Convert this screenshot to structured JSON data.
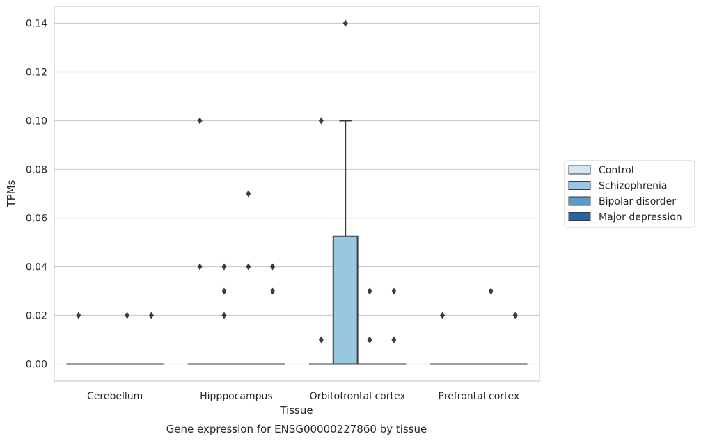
{
  "chart_data": {
    "type": "box",
    "title": "Gene expression for ENSG00000227860 by tissue",
    "xlabel": "Tissue",
    "ylabel": "TPMs",
    "ylim": [
      -0.007,
      0.147
    ],
    "yticks": [
      0.0,
      0.02,
      0.04,
      0.06,
      0.08,
      0.1,
      0.12,
      0.14
    ],
    "ytick_labels": [
      "0.00",
      "0.02",
      "0.04",
      "0.06",
      "0.08",
      "0.10",
      "0.12",
      "0.14"
    ],
    "categories": [
      "Cerebellum",
      "Hipppocampus",
      "Orbitofrontal cortex",
      "Prefrontal cortex"
    ],
    "grid": true,
    "legend_position": "right",
    "series": [
      {
        "name": "Control",
        "color": "#d6e5f4",
        "boxes": [
          {
            "q1": 0,
            "median": 0,
            "q3": 0,
            "whisker_low": 0,
            "whisker_high": 0,
            "outliers": [
              0.02
            ]
          },
          {
            "q1": 0,
            "median": 0,
            "q3": 0,
            "whisker_low": 0,
            "whisker_high": 0,
            "outliers": [
              0.1,
              0.04
            ]
          },
          {
            "q1": 0,
            "median": 0,
            "q3": 0,
            "whisker_low": 0,
            "whisker_high": 0,
            "outliers": [
              0.1,
              0.01
            ]
          },
          {
            "q1": 0,
            "median": 0,
            "q3": 0,
            "whisker_low": 0,
            "whisker_high": 0,
            "outliers": [
              0.02
            ]
          }
        ]
      },
      {
        "name": "Schizophrenia",
        "color": "#9ac7e0",
        "boxes": [
          {
            "q1": 0,
            "median": 0,
            "q3": 0,
            "whisker_low": 0,
            "whisker_high": 0,
            "outliers": []
          },
          {
            "q1": 0,
            "median": 0,
            "q3": 0,
            "whisker_low": 0,
            "whisker_high": 0,
            "outliers": [
              0.04,
              0.03,
              0.02
            ]
          },
          {
            "q1": 0,
            "median": 0,
            "q3": 0.0525,
            "whisker_low": 0,
            "whisker_high": 0.1,
            "outliers": [
              0.14
            ]
          },
          {
            "q1": 0,
            "median": 0,
            "q3": 0,
            "whisker_low": 0,
            "whisker_high": 0,
            "outliers": []
          }
        ]
      },
      {
        "name": "Bipolar disorder",
        "color": "#5a9bc8",
        "boxes": [
          {
            "q1": 0,
            "median": 0,
            "q3": 0,
            "whisker_low": 0,
            "whisker_high": 0,
            "outliers": [
              0.02
            ]
          },
          {
            "q1": 0,
            "median": 0,
            "q3": 0,
            "whisker_low": 0,
            "whisker_high": 0,
            "outliers": [
              0.07,
              0.04
            ]
          },
          {
            "q1": 0,
            "median": 0,
            "q3": 0,
            "whisker_low": 0,
            "whisker_high": 0,
            "outliers": [
              0.03,
              0.01
            ]
          },
          {
            "q1": 0,
            "median": 0,
            "q3": 0,
            "whisker_low": 0,
            "whisker_high": 0,
            "outliers": [
              0.03
            ]
          }
        ]
      },
      {
        "name": "Major depression",
        "color": "#2166ac",
        "boxes": [
          {
            "q1": 0,
            "median": 0,
            "q3": 0,
            "whisker_low": 0,
            "whisker_high": 0,
            "outliers": [
              0.02
            ]
          },
          {
            "q1": 0,
            "median": 0,
            "q3": 0,
            "whisker_low": 0,
            "whisker_high": 0,
            "outliers": [
              0.04,
              0.03
            ]
          },
          {
            "q1": 0,
            "median": 0,
            "q3": 0,
            "whisker_low": 0,
            "whisker_high": 0,
            "outliers": [
              0.03,
              0.01
            ]
          },
          {
            "q1": 0,
            "median": 0,
            "q3": 0,
            "whisker_low": 0,
            "whisker_high": 0,
            "outliers": [
              0.02
            ]
          }
        ]
      }
    ]
  }
}
